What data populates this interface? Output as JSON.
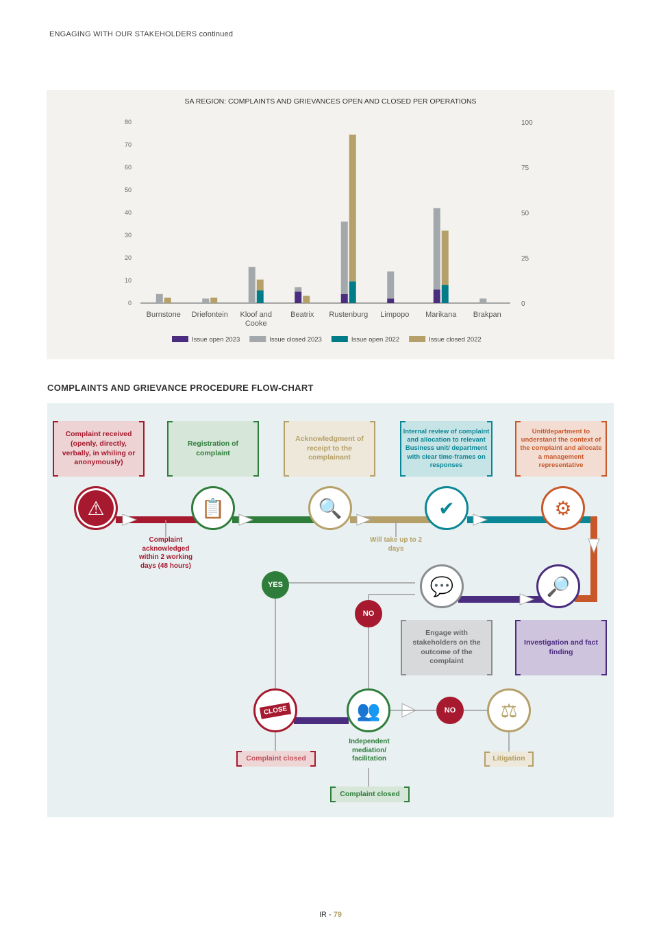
{
  "header": {
    "running_title": "ENGAGING WITH OUR STAKEHOLDERS continued"
  },
  "chart_data": {
    "type": "bar",
    "stacked": true,
    "title": "SA REGION: COMPLAINTS AND GRIEVANCES OPEN AND CLOSED PER OPERATIONS",
    "categories": [
      "Burnstone",
      "Driefontein",
      "Kloof and Cooke",
      "Beatrix",
      "Rustenburg",
      "Limpopo",
      "Marikana",
      "Brakpan"
    ],
    "y_left": {
      "ylim": [
        0,
        80
      ],
      "ticks": [
        "0",
        "10",
        "20",
        "30",
        "40",
        "50",
        "60",
        "70",
        "80"
      ]
    },
    "y_right": {
      "ylim": [
        0,
        100
      ],
      "ticks": [
        "0",
        "25",
        "50",
        "75",
        "100"
      ]
    },
    "series": [
      {
        "name": "Issue open 2023",
        "axis": "left",
        "stack": "2023",
        "color": "#4b2d7f",
        "values": [
          0,
          0,
          0,
          5,
          4,
          2,
          6,
          0
        ]
      },
      {
        "name": "Issue closed 2023",
        "axis": "left",
        "stack": "2023",
        "color": "#a3a8ac",
        "values": [
          4,
          2,
          16,
          2,
          32,
          12,
          36,
          2
        ]
      },
      {
        "name": "Issue open 2022",
        "axis": "right",
        "stack": "2022",
        "color": "#007c89",
        "values": [
          0,
          0,
          7,
          0,
          12,
          0,
          10,
          0
        ]
      },
      {
        "name": "Issue closed 2022",
        "axis": "right",
        "stack": "2022",
        "color": "#b5a069",
        "values": [
          3,
          3,
          6,
          4,
          81,
          0,
          30,
          0
        ]
      }
    ],
    "legend": "bottom",
    "grid": false
  },
  "flowchart": {
    "title": "COMPLAINTS AND GRIEVANCE PROCEDURE FLOW-CHART",
    "steps": [
      {
        "text": "Complaint received (openly, directly, verbally, in whiling or anonymously)",
        "icon": "people-alert-icon"
      },
      {
        "text": "Registration of complaint",
        "icon": "clipboard-alert-icon"
      },
      {
        "text": "Acknowledgment of receipt to the complainant",
        "icon": "document-search-icon"
      },
      {
        "text": "Internal review of complaint and allocation to relevant Business unit/ department with clear time-frames on responses",
        "icon": "document-check-icon"
      },
      {
        "text": "Unit/department to understand the context of the complaint and allocate a management representative",
        "icon": "team-gear-icon"
      },
      {
        "text": "Investigation and fact finding",
        "icon": "document-magnifier-icon"
      },
      {
        "text": "Engage with stakeholders on the outcome of the complaint",
        "icon": "stakeholders-chat-icon"
      }
    ],
    "notes": {
      "acknowledged": "Complaint acknowledged within 2 working days (48 hours)",
      "two_days": "Will take up to 2 days"
    },
    "yes": "YES",
    "no": "NO",
    "close_sign": "CLOSE",
    "mediation": "Independent mediation/ facilitation",
    "closed_1": "Complaint closed",
    "closed_2": "Complaint closed",
    "litigation": "Litigation",
    "colors": {
      "red": "#a6192e",
      "green": "#2f7d3b",
      "gold": "#b5a069",
      "teal": "#0a8796",
      "orange": "#c8582a",
      "purple": "#4b2d7f",
      "gray": "#8a8d90"
    }
  },
  "footer": {
    "prefix": "IR - ",
    "page": "79"
  }
}
